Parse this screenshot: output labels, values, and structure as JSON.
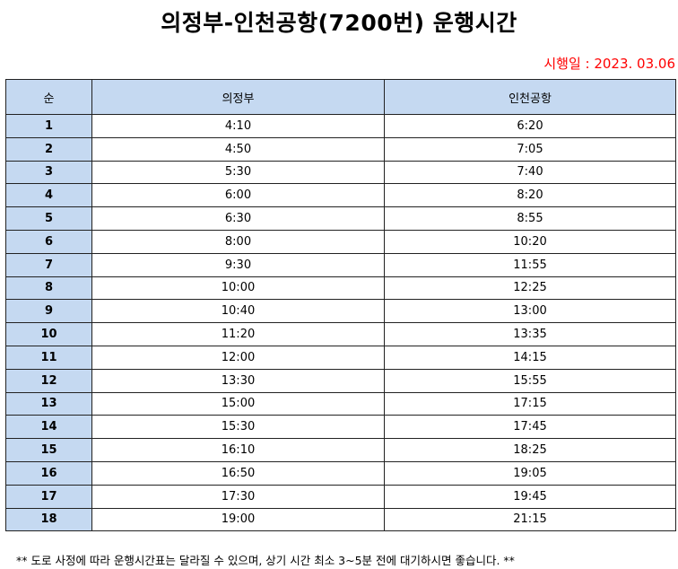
{
  "title": "의정부-인천공항(7200번) 운행시간",
  "effective_date": "시행일 : 2023. 03.06",
  "table": {
    "headers": [
      "순",
      "의정부",
      "인천공항"
    ],
    "rows": [
      [
        "1",
        "4:10",
        "6:20"
      ],
      [
        "2",
        "4:50",
        "7:05"
      ],
      [
        "3",
        "5:30",
        "7:40"
      ],
      [
        "4",
        "6:00",
        "8:20"
      ],
      [
        "5",
        "6:30",
        "8:55"
      ],
      [
        "6",
        "8:00",
        "10:20"
      ],
      [
        "7",
        "9:30",
        "11:55"
      ],
      [
        "8",
        "10:00",
        "12:25"
      ],
      [
        "9",
        "10:40",
        "13:00"
      ],
      [
        "10",
        "11:20",
        "13:35"
      ],
      [
        "11",
        "12:00",
        "14:15"
      ],
      [
        "12",
        "13:30",
        "15:55"
      ],
      [
        "13",
        "15:00",
        "17:15"
      ],
      [
        "14",
        "15:30",
        "17:45"
      ],
      [
        "15",
        "16:10",
        "18:25"
      ],
      [
        "16",
        "16:50",
        "19:05"
      ],
      [
        "17",
        "17:30",
        "19:45"
      ],
      [
        "18",
        "19:00",
        "21:15"
      ]
    ]
  },
  "footnote": "** 도로 사정에 따라 운행시간표는 달라질 수 있으며, 상기 시간 최소 3~5분 전에 대기하시면 좋습니다. **",
  "colors": {
    "header_bg": "#c5d9f1",
    "effective_date": "#ff0000",
    "border": "#222222"
  }
}
